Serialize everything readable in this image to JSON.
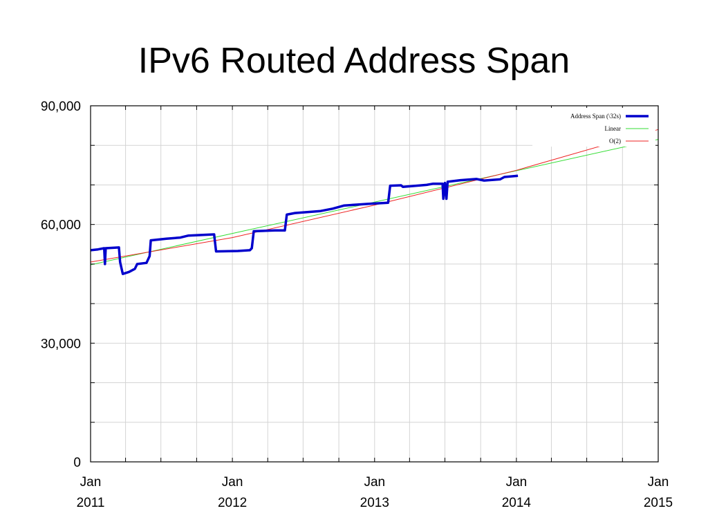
{
  "chart_data": {
    "type": "line",
    "title": "IPv6 Routed Address Span",
    "xlabel": "",
    "ylabel": "",
    "xlim": [
      "2011-01-01",
      "2015-01-01"
    ],
    "ylim": [
      0,
      90000
    ],
    "grid": true,
    "legend_position": "top-right",
    "y_ticks": [
      {
        "value": 0,
        "label": "0"
      },
      {
        "value": 30000,
        "label": "30,000"
      },
      {
        "value": 60000,
        "label": "60,000"
      },
      {
        "value": 90000,
        "label": "90,000"
      }
    ],
    "x_ticks": [
      {
        "date": "2011-01-01",
        "label1": "Jan",
        "label2": "2011"
      },
      {
        "date": "2012-01-01",
        "label1": "Jan",
        "label2": "2012"
      },
      {
        "date": "2013-01-01",
        "label1": "Jan",
        "label2": "2013"
      },
      {
        "date": "2014-01-01",
        "label1": "Jan",
        "label2": "2014"
      },
      {
        "date": "2015-01-01",
        "label1": "Jan",
        "label2": "2015"
      }
    ],
    "series": [
      {
        "name": "Address Span (\\32s)",
        "color": "#0000cc",
        "points": [
          [
            "2011-01-01",
            53500
          ],
          [
            "2011-01-20",
            53700
          ],
          [
            "2011-02-05",
            54000
          ],
          [
            "2011-02-07",
            50000
          ],
          [
            "2011-02-09",
            54000
          ],
          [
            "2011-03-15",
            54200
          ],
          [
            "2011-03-18",
            50500
          ],
          [
            "2011-03-25",
            47500
          ],
          [
            "2011-04-10",
            48000
          ],
          [
            "2011-04-25",
            48800
          ],
          [
            "2011-05-01",
            50000
          ],
          [
            "2011-05-25",
            50300
          ],
          [
            "2011-06-02",
            52000
          ],
          [
            "2011-06-05",
            56000
          ],
          [
            "2011-07-15",
            56400
          ],
          [
            "2011-08-20",
            56700
          ],
          [
            "2011-09-10",
            57200
          ],
          [
            "2011-11-15",
            57500
          ],
          [
            "2011-11-20",
            53200
          ],
          [
            "2012-01-15",
            53300
          ],
          [
            "2012-02-15",
            53500
          ],
          [
            "2012-02-20",
            54000
          ],
          [
            "2012-02-25",
            58300
          ],
          [
            "2012-04-20",
            58500
          ],
          [
            "2012-05-15",
            58500
          ],
          [
            "2012-05-20",
            62500
          ],
          [
            "2012-06-10",
            62900
          ],
          [
            "2012-08-15",
            63400
          ],
          [
            "2012-09-15",
            64000
          ],
          [
            "2012-10-15",
            64800
          ],
          [
            "2012-12-15",
            65200
          ],
          [
            "2013-02-05",
            65500
          ],
          [
            "2013-02-10",
            69800
          ],
          [
            "2013-03-10",
            69900
          ],
          [
            "2013-03-15",
            69500
          ],
          [
            "2013-05-15",
            70000
          ],
          [
            "2013-06-01",
            70300
          ],
          [
            "2013-06-25",
            70300
          ],
          [
            "2013-06-27",
            66500
          ],
          [
            "2013-07-01",
            70500
          ],
          [
            "2013-07-05",
            66500
          ],
          [
            "2013-07-08",
            70800
          ],
          [
            "2013-08-10",
            71200
          ],
          [
            "2013-09-20",
            71500
          ],
          [
            "2013-10-10",
            71100
          ],
          [
            "2013-11-20",
            71400
          ],
          [
            "2013-12-01",
            72000
          ],
          [
            "2014-01-05",
            72300
          ]
        ]
      },
      {
        "name": "Linear",
        "color": "#33dd33",
        "points": [
          [
            "2011-01-01",
            49800
          ],
          [
            "2015-01-01",
            81500
          ]
        ]
      },
      {
        "name": "O(2)",
        "color": "#ee2222",
        "points": [
          [
            "2011-01-01",
            50500
          ],
          [
            "2012-01-01",
            56700
          ],
          [
            "2013-01-01",
            64900
          ],
          [
            "2014-01-01",
            73700
          ],
          [
            "2015-01-01",
            84000
          ]
        ]
      }
    ]
  }
}
